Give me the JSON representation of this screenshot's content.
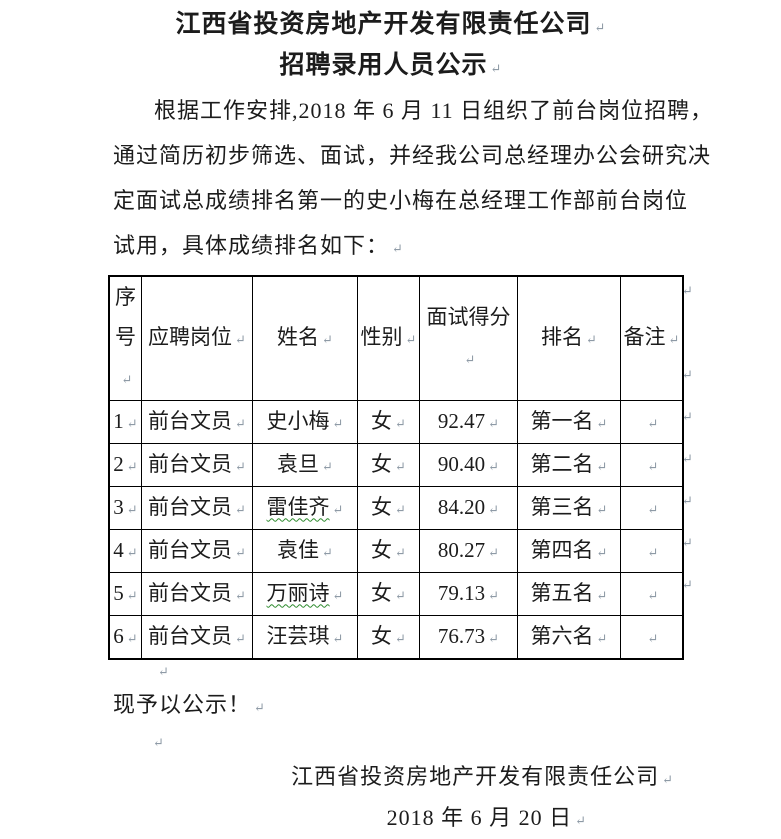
{
  "marks": {
    "pilcrow": "↵"
  },
  "doc": {
    "title_line1": "江西省投资房地产开发有限责任公司",
    "title_line2": "招聘录用人员公示",
    "body_lines": [
      "根据工作安排,2018 年 6 月 11 日组织了前台岗位招聘，",
      "通过简历初步筛选、面试，并经我公司总经理办公会研究决",
      "定面试总成绩排名第一的史小梅在总经理工作部前台岗位",
      "试用，具体成绩排名如下："
    ],
    "closing": "现予以公示！",
    "signature_company": "江西省投资房地产开发有限责任公司",
    "signature_date": "2018 年 6 月 20 日"
  },
  "table": {
    "headers": [
      "序号",
      "应聘岗位",
      "姓名",
      "性别",
      "面试得分",
      "排名",
      "备注"
    ],
    "col_keys": [
      "no",
      "position",
      "name",
      "gender",
      "score",
      "rank",
      "remark"
    ],
    "rows": [
      {
        "no": "1",
        "position": "前台文员",
        "name": "史小梅",
        "gender": "女",
        "score": "92.47",
        "rank": "第一名",
        "remark": "",
        "spell_wavy": false
      },
      {
        "no": "2",
        "position": "前台文员",
        "name": "袁旦",
        "gender": "女",
        "score": "90.40",
        "rank": "第二名",
        "remark": "",
        "spell_wavy": false
      },
      {
        "no": "3",
        "position": "前台文员",
        "name": "雷佳齐",
        "gender": "女",
        "score": "84.20",
        "rank": "第三名",
        "remark": "",
        "spell_wavy": true
      },
      {
        "no": "4",
        "position": "前台文员",
        "name": "袁佳",
        "gender": "女",
        "score": "80.27",
        "rank": "第四名",
        "remark": "",
        "spell_wavy": false
      },
      {
        "no": "5",
        "position": "前台文员",
        "name": "万丽诗",
        "gender": "女",
        "score": "79.13",
        "rank": "第五名",
        "remark": "",
        "spell_wavy": true
      },
      {
        "no": "6",
        "position": "前台文员",
        "name": "汪芸琪",
        "gender": "女",
        "score": "76.73",
        "rank": "第六名",
        "remark": "",
        "spell_wavy": false
      }
    ]
  }
}
